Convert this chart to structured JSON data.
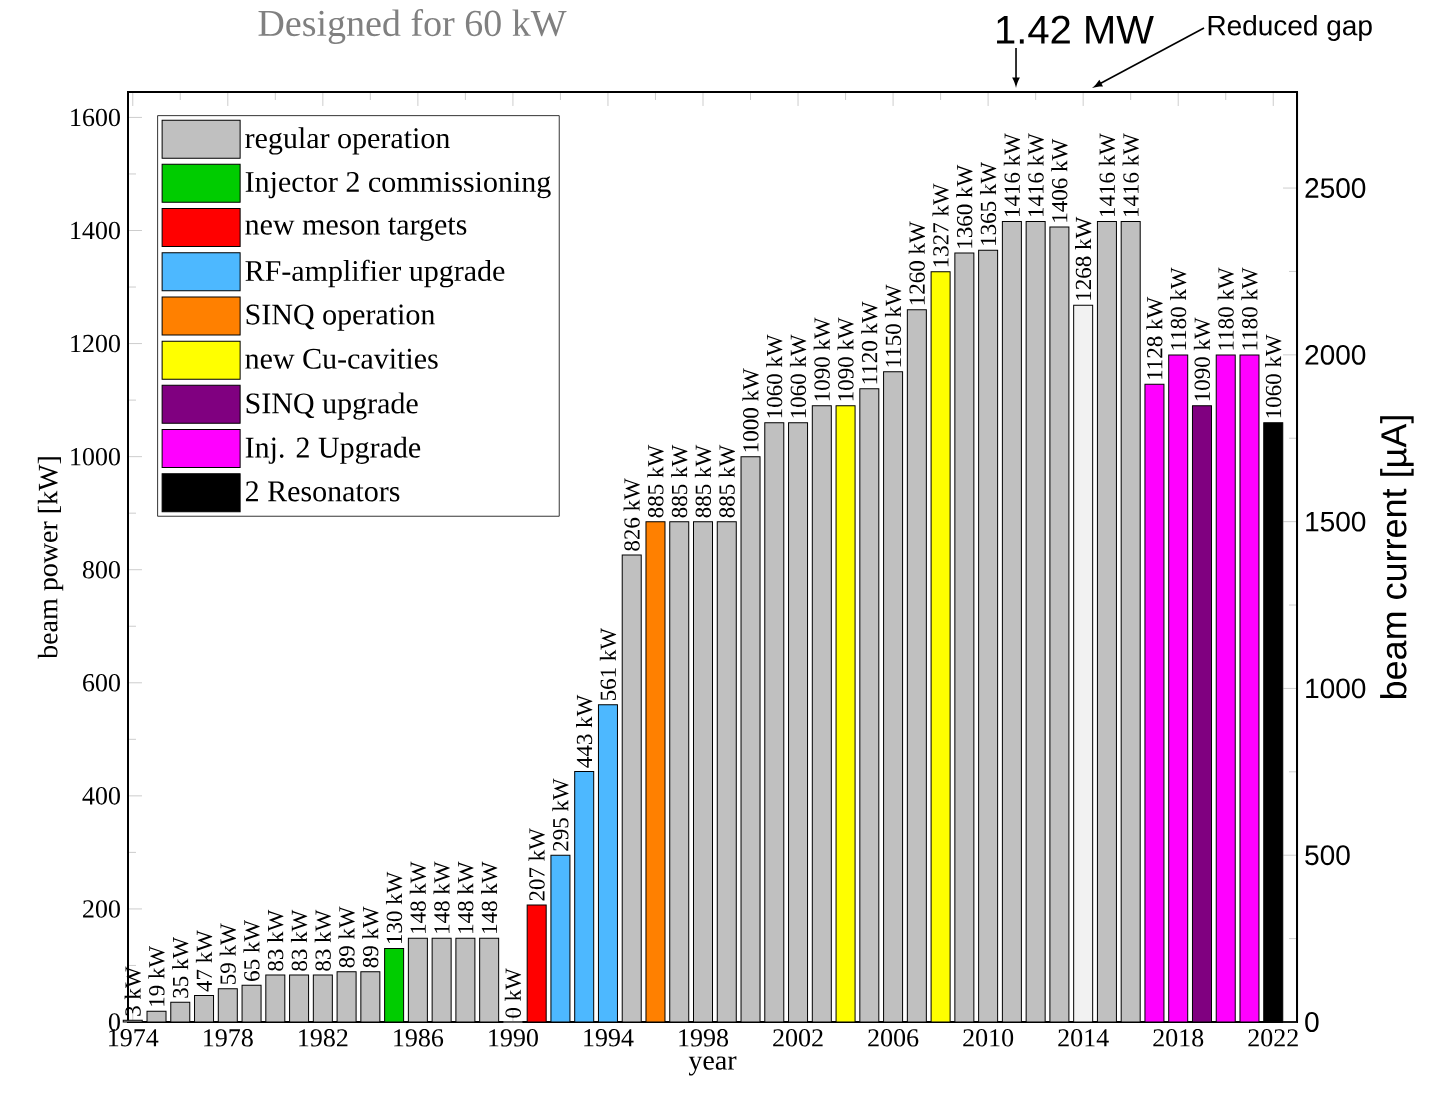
{
  "chart_data": {
    "type": "bar",
    "title": "Designed for 60 kW",
    "xlabel": "year",
    "ylabel": "beam power [kW]",
    "y2label": "beam current [µA]",
    "xlim": [
      1973.8,
      2023
    ],
    "xticks": [
      1974,
      1978,
      1982,
      1986,
      1990,
      1994,
      1998,
      2002,
      2006,
      2010,
      2014,
      2018,
      2022
    ],
    "ylim": [
      0,
      1645
    ],
    "yticks": [
      0,
      200,
      400,
      600,
      800,
      1000,
      1200,
      1400,
      1600
    ],
    "y2lim": [
      0,
      2788
    ],
    "y2ticks": [
      0,
      500,
      1000,
      1500,
      2000,
      2500
    ],
    "legend": "top left",
    "annotations": [
      "1.42 MW",
      "Reduced gap"
    ],
    "series": [
      {
        "name": "regular operation",
        "color": "#c0c0c0",
        "x": [
          1974,
          1975,
          1976,
          1977,
          1978,
          1979,
          1980,
          1981,
          1982,
          1983,
          1984,
          1986,
          1987,
          1988,
          1989,
          1990,
          1995,
          1997,
          1998,
          1999,
          2000,
          2001,
          2002,
          2003,
          2005,
          2006,
          2007,
          2009,
          2010,
          2011,
          2012,
          2013,
          2015,
          2016
        ],
        "values": [
          3,
          19,
          35,
          47,
          59,
          65,
          83,
          83,
          83,
          89,
          89,
          148,
          148,
          148,
          148,
          0,
          826,
          885,
          885,
          885,
          1000,
          1060,
          1060,
          1090,
          1120,
          1150,
          1260,
          1360,
          1365,
          1416,
          1416,
          1406,
          1416,
          1416
        ],
        "value_labels": [
          "3 kW",
          "19 kW",
          "35 kW",
          "47 kW",
          "59 kW",
          "65 kW",
          "83 kW",
          "83 kW",
          "83 kW",
          "89 kW",
          "89 kW",
          "148 kW",
          "148 kW",
          "148 kW",
          "148 kW",
          "0 kW",
          "826 kW",
          "885 kW",
          "885 kW",
          "885 kW",
          "1000 kW",
          "1060 kW",
          "1060 kW",
          "1090 kW",
          "1120 kW",
          "1150 kW",
          "1260 kW",
          "1360 kW",
          "1365 kW",
          "1416 kW",
          "1416 kW",
          "1406 kW",
          "1416 kW",
          "1416 kW"
        ]
      },
      {
        "name": "Injector 2 commissioning",
        "color": "#00cc00",
        "x": [
          1985
        ],
        "values": [
          130
        ],
        "value_labels": [
          "130 kW"
        ]
      },
      {
        "name": "new meson targets",
        "color": "#ff0000",
        "x": [
          1991
        ],
        "values": [
          207
        ],
        "value_labels": [
          "207 kW"
        ]
      },
      {
        "name": "RF-amplifier upgrade",
        "color": "#4db8ff",
        "x": [
          1992,
          1993,
          1994
        ],
        "values": [
          295,
          443,
          561
        ],
        "value_labels": [
          "295 kW",
          "443 kW",
          "561 kW"
        ]
      },
      {
        "name": "SINQ operation",
        "color": "#ff8000",
        "x": [
          1996
        ],
        "values": [
          885
        ],
        "value_labels": [
          "885 kW"
        ]
      },
      {
        "name": "new Cu-cavities",
        "color": "#ffff00",
        "x": [
          2004,
          2008
        ],
        "values": [
          1090,
          1327
        ],
        "value_labels": [
          "1090 kW",
          "1327 kW"
        ]
      },
      {
        "name": "SINQ upgrade",
        "color": "#800080",
        "x": [
          2019
        ],
        "values": [
          1090
        ],
        "value_labels": [
          "1090 kW"
        ]
      },
      {
        "name": "Inj. 2 Upgrade",
        "color": "#ff00ff",
        "x": [
          2017,
          2018,
          2020,
          2021
        ],
        "values": [
          1128,
          1180,
          1180,
          1180
        ],
        "value_labels": [
          "1128 kW",
          "1180 kW",
          "1180 kW",
          "1180 kW"
        ]
      },
      {
        "name": "2 Resonators",
        "color": "#000000",
        "x": [
          2022
        ],
        "values": [
          1060
        ],
        "value_labels": [
          "1060 kW"
        ]
      },
      {
        "color": "#f2f2f2",
        "x": [
          2014
        ],
        "values": [
          1268
        ],
        "value_labels": [
          "1268 kW"
        ]
      }
    ]
  }
}
